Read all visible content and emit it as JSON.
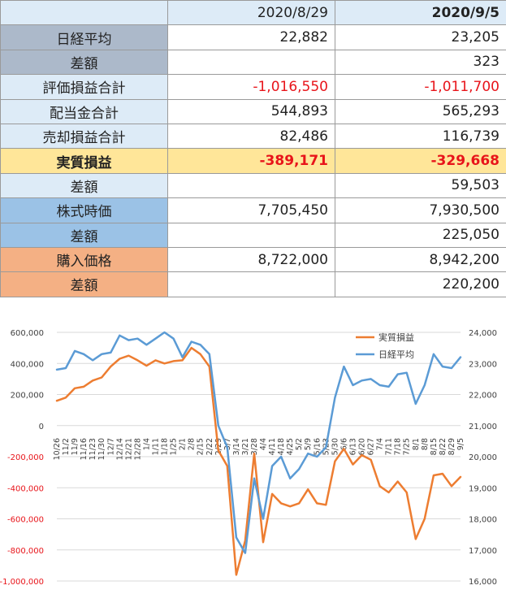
{
  "table": {
    "headers": [
      "",
      "2020/8/29",
      "2020/9/5"
    ],
    "rows": [
      {
        "label": "日経平均",
        "v1": "22,882",
        "v2": "23,205"
      },
      {
        "label": "差額",
        "v1": "",
        "v2": "323"
      },
      {
        "label": "評価損益合計",
        "v1": "-1,016,550",
        "v2": "-1,011,700"
      },
      {
        "label": "配当金合計",
        "v1": "544,893",
        "v2": "565,293"
      },
      {
        "label": "売却損益合計",
        "v1": "82,486",
        "v2": "116,739"
      },
      {
        "label": "実質損益",
        "v1": "-389,171",
        "v2": "-329,668"
      },
      {
        "label": "差額",
        "v1": "",
        "v2": "59,503"
      },
      {
        "label": "株式時価",
        "v1": "7,705,450",
        "v2": "7,930,500"
      },
      {
        "label": "差額",
        "v1": "",
        "v2": "225,050"
      },
      {
        "label": "購入価格",
        "v1": "8,722,000",
        "v2": "8,942,200"
      },
      {
        "label": "差額",
        "v1": "",
        "v2": "220,200"
      }
    ],
    "colors": {
      "gray": "#acb9ca",
      "light": "#ddebf7",
      "gold": "#ffe699",
      "blue": "#9bc2e6",
      "orange": "#f4b084",
      "negative": "#e8141a"
    }
  },
  "chart_data": {
    "type": "line",
    "x": [
      "10/26",
      "11/2",
      "11/9",
      "11/16",
      "11/23",
      "11/30",
      "12/7",
      "12/14",
      "12/21",
      "12/28",
      "1/4",
      "1/11",
      "1/18",
      "1/25",
      "2/1",
      "2/8",
      "2/15",
      "2/22",
      "2/29",
      "3/7",
      "3/14",
      "3/21",
      "3/28",
      "4/4",
      "4/11",
      "4/18",
      "4/25",
      "5/2",
      "5/9",
      "5/16",
      "5/23",
      "5/30",
      "6/6",
      "6/13",
      "6/20",
      "6/27",
      "7/4",
      "7/11",
      "7/18",
      "7/25",
      "8/1",
      "8/8",
      "8/15",
      "8/22",
      "8/29",
      "9/5"
    ],
    "x_tick_labels": [
      "10/26",
      "11/2",
      "11/9",
      "11/16",
      "11/23",
      "11/30",
      "12/7",
      "12/14",
      "12/21",
      "12/28",
      "1/4",
      "1/11",
      "1/18",
      "1/25",
      "2/1",
      "2/8",
      "2/15",
      "2/22",
      "2/29",
      "3/7",
      "3/14",
      "3/21",
      "3/28",
      "4/4",
      "4/11",
      "4/18",
      "4/25",
      "5/2",
      "5/9",
      "5/16",
      "5/23",
      "5/30",
      "6/6",
      "6/13",
      "6/20",
      "6/27",
      "7/4",
      "7/11",
      "7/18",
      "7/25",
      "8/1",
      "8/8",
      "8/15",
      "8/22",
      "8/29",
      "9/5"
    ],
    "series": [
      {
        "name": "実質損益",
        "axis": "left",
        "color": "#ed7d31",
        "values": [
          160000,
          180000,
          240000,
          250000,
          290000,
          310000,
          380000,
          430000,
          450000,
          420000,
          385000,
          420000,
          400000,
          415000,
          420000,
          500000,
          460000,
          380000,
          -160000,
          -260000,
          -960000,
          -740000,
          -180000,
          -750000,
          -440000,
          -500000,
          -520000,
          -500000,
          -410000,
          -500000,
          -510000,
          -230000,
          -150000,
          -250000,
          -190000,
          -220000,
          -390000,
          -430000,
          -360000,
          -430000,
          -730000,
          -600000,
          -320000,
          -310000,
          -390000,
          -330000
        ]
      },
      {
        "name": "日経平均",
        "axis": "right",
        "color": "#5b9bd5",
        "values": [
          22800,
          22850,
          23400,
          23300,
          23100,
          23300,
          23350,
          23900,
          23750,
          23800,
          23600,
          23800,
          24000,
          23800,
          23200,
          23700,
          23600,
          23300,
          21000,
          20300,
          17400,
          16900,
          19300,
          18000,
          19700,
          20000,
          19300,
          19600,
          20100,
          20000,
          20300,
          21900,
          22900,
          22300,
          22450,
          22500,
          22300,
          22250,
          22650,
          22700,
          21700,
          22300,
          23300,
          22900,
          22850,
          23200
        ]
      }
    ],
    "left_axis": {
      "ylim": [
        -1000000,
        600000
      ],
      "ticks": [
        600000,
        400000,
        200000,
        0,
        -200000,
        -400000,
        -600000,
        -800000,
        -1000000
      ],
      "tick_labels": [
        "600,000",
        "400,000",
        "200,000",
        "0",
        "-200,000",
        "-400,000",
        "-600,000",
        "-800,000",
        "-1,000,000"
      ],
      "negative_color": "#e8141a"
    },
    "right_axis": {
      "ylim": [
        16000,
        24000
      ],
      "ticks": [
        24000,
        23000,
        22000,
        21000,
        20000,
        19000,
        18000,
        17000,
        16000
      ],
      "tick_labels": [
        "24,000",
        "23,000",
        "22,000",
        "21,000",
        "20,000",
        "19,000",
        "18,000",
        "17,000",
        "16,000"
      ]
    },
    "legend": {
      "placement": "top-right",
      "entries": [
        "実質損益",
        "日経平均"
      ]
    },
    "grid": true
  }
}
